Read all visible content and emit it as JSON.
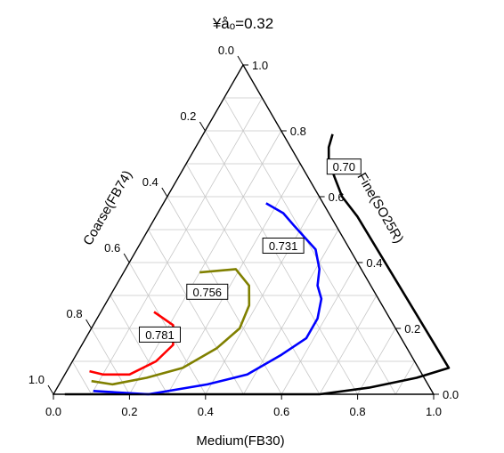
{
  "chart_data": {
    "type": "ternary-contour",
    "title": "¥åₒ=0.32",
    "axes": {
      "bottom": {
        "label": "Medium(FB30)",
        "ticks": [
          "0.0",
          "0.2",
          "0.4",
          "0.6",
          "0.8",
          "1.0"
        ]
      },
      "left": {
        "label": "Coarse(FB74)",
        "ticks": [
          "0.0",
          "0.2",
          "0.4",
          "0.6",
          "0.8",
          "1.0"
        ]
      },
      "right": {
        "label": "Fine(SO25R)",
        "ticks": [
          "0.0",
          "0.2",
          "0.4",
          "0.6",
          "0.8",
          "1.0"
        ]
      }
    },
    "grid": true,
    "grid_step": 0.1,
    "contours": [
      {
        "level": "0.70",
        "color": "#000000",
        "label": "0.70",
        "points": [
          [
            0.03,
            0.0
          ],
          [
            0.25,
            0.0
          ],
          [
            0.5,
            0.0
          ],
          [
            0.7,
            0.0
          ],
          [
            0.82,
            0.02
          ],
          [
            0.93,
            0.05
          ],
          [
            1.0,
            0.08
          ],
          [
            0.53,
            0.54
          ],
          [
            0.46,
            0.6
          ],
          [
            0.41,
            0.66
          ],
          [
            0.37,
            0.71
          ],
          [
            0.35,
            0.75
          ],
          [
            0.34,
            0.79
          ]
        ]
      },
      {
        "level": "0.731",
        "color": "#0000ff",
        "label": "0.731",
        "points": [
          [
            0.1,
            0.01
          ],
          [
            0.25,
            0.0
          ],
          [
            0.39,
            0.03
          ],
          [
            0.48,
            0.06
          ],
          [
            0.54,
            0.12
          ],
          [
            0.58,
            0.17
          ],
          [
            0.58,
            0.23
          ],
          [
            0.56,
            0.29
          ],
          [
            0.53,
            0.33
          ],
          [
            0.51,
            0.38
          ],
          [
            0.47,
            0.44
          ],
          [
            0.38,
            0.51
          ],
          [
            0.33,
            0.55
          ],
          [
            0.27,
            0.58
          ]
        ]
      },
      {
        "level": "0.756",
        "color": "#808000",
        "label": "0.756",
        "points": [
          [
            0.08,
            0.04
          ],
          [
            0.14,
            0.03
          ],
          [
            0.22,
            0.05
          ],
          [
            0.3,
            0.08
          ],
          [
            0.36,
            0.14
          ],
          [
            0.39,
            0.2
          ],
          [
            0.38,
            0.27
          ],
          [
            0.35,
            0.33
          ],
          [
            0.29,
            0.38
          ],
          [
            0.2,
            0.37
          ]
        ]
      },
      {
        "level": "0.781",
        "color": "#ff0000",
        "label": "0.781",
        "points": [
          [
            0.06,
            0.07
          ],
          [
            0.1,
            0.06
          ],
          [
            0.17,
            0.06
          ],
          [
            0.22,
            0.1
          ],
          [
            0.24,
            0.15
          ],
          [
            0.21,
            0.21
          ],
          [
            0.14,
            0.25
          ]
        ]
      }
    ]
  }
}
